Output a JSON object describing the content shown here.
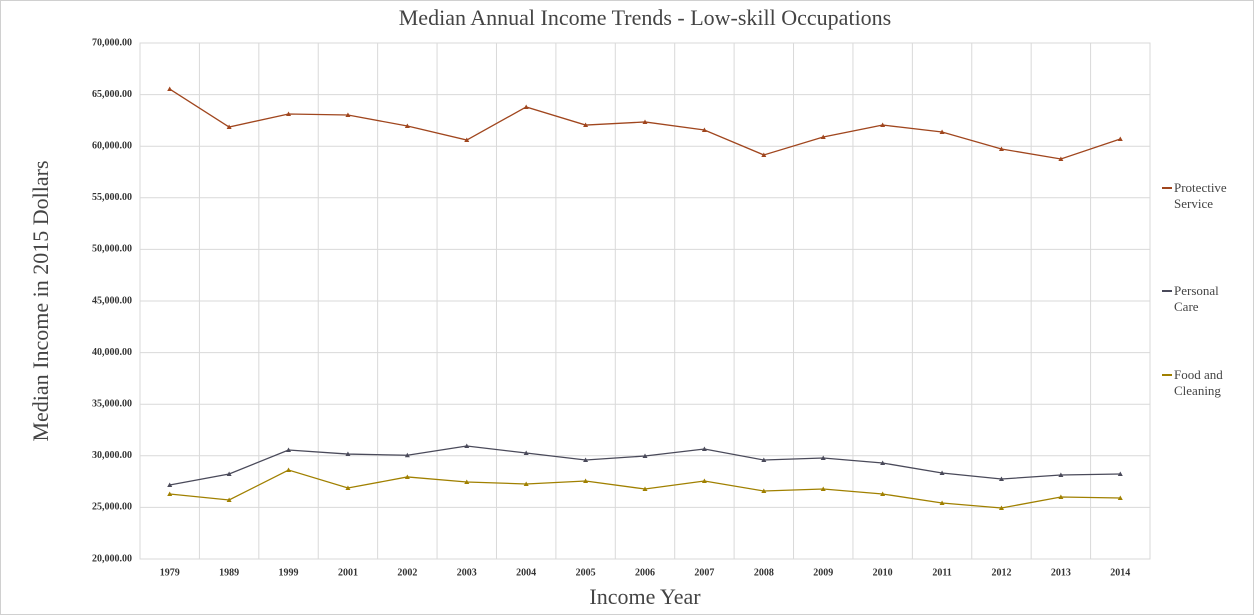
{
  "chart_data": {
    "type": "line",
    "title": "Median Annual Income Trends - Low-skill Occupations",
    "x_label": "Income Year",
    "y_label": "Median Income in 2015 Dollars",
    "categories": [
      "1979",
      "1989",
      "1999",
      "2001",
      "2002",
      "2003",
      "2004",
      "2005",
      "2006",
      "2007",
      "2008",
      "2009",
      "2010",
      "2011",
      "2012",
      "2013",
      "2014"
    ],
    "series": [
      {
        "name": "Protective Service",
        "color": "#a0461e",
        "values": [
          65540,
          61860,
          63120,
          63020,
          61960,
          60600,
          63800,
          62050,
          62350,
          61570,
          59150,
          60890,
          62050,
          61380,
          59730,
          58760,
          60700
        ]
      },
      {
        "name": "Personal Care",
        "color": "#4a4a5a",
        "values": [
          27170,
          28240,
          30560,
          30170,
          30050,
          30950,
          30270,
          29590,
          29980,
          30660,
          29590,
          29790,
          29300,
          28330,
          27750,
          28140,
          28240
        ]
      },
      {
        "name": "Food and Cleaning",
        "color": "#a08000",
        "values": [
          26300,
          25720,
          28620,
          26880,
          27950,
          27460,
          27270,
          27560,
          26780,
          27560,
          26590,
          26780,
          26300,
          25430,
          24940,
          26010,
          25910
        ]
      }
    ],
    "ylim": [
      20000,
      70000
    ],
    "yticks": [
      {
        "value": 20000,
        "label": "20,000.00"
      },
      {
        "value": 25000,
        "label": "25,000.00"
      },
      {
        "value": 30000,
        "label": "30,000.00"
      },
      {
        "value": 35000,
        "label": "35,000.00"
      },
      {
        "value": 40000,
        "label": "40,000.00"
      },
      {
        "value": 45000,
        "label": "45,000.00"
      },
      {
        "value": 50000,
        "label": "50,000.00"
      },
      {
        "value": 55000,
        "label": "55,000.00"
      },
      {
        "value": 60000,
        "label": "60,000.00"
      },
      {
        "value": 65000,
        "label": "65,000.00"
      },
      {
        "value": 70000,
        "label": "70,000.00"
      }
    ],
    "grid": true
  }
}
